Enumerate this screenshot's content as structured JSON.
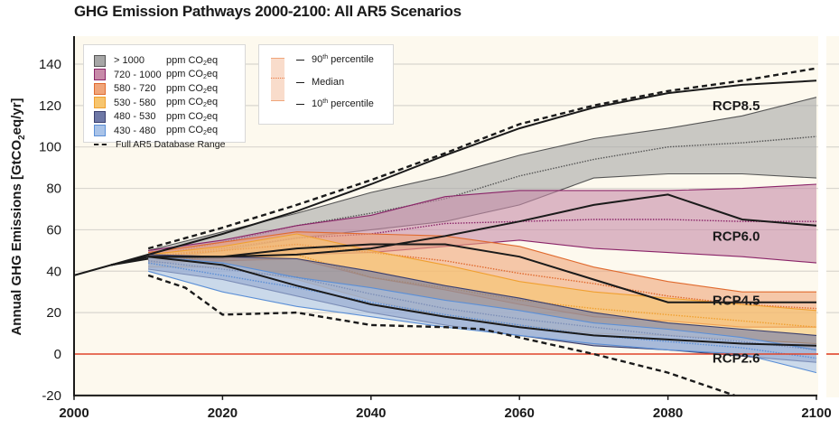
{
  "chart_data": {
    "type": "area",
    "title": "GHG Emission Pathways 2000-2100: All AR5 Scenarios",
    "xlabel": "",
    "ylabel": "Annual GHG Emissions [GtCO2eq/yr]",
    "ylabel_parts": {
      "pre": "Annual GHG Emissions [GtCO",
      "sub": "2",
      "post": "eq/yr]"
    },
    "xlim": [
      2000,
      2100
    ],
    "ylim": [
      -20,
      150
    ],
    "xticks": [
      "2000",
      "2020",
      "2040",
      "2060",
      "2080",
      "2100"
    ],
    "xtick_values": [
      2000,
      2020,
      2040,
      2060,
      2080,
      2100
    ],
    "yticks": [
      "-20",
      "0",
      "20",
      "40",
      "60",
      "80",
      "100",
      "120",
      "140"
    ],
    "ytick_values": [
      -20,
      0,
      20,
      40,
      60,
      80,
      100,
      120,
      140
    ],
    "grid": true,
    "zero_line_color": "#e0442a",
    "bands": [
      {
        "name": "> 1000",
        "unit": "ppm CO2eq",
        "fill": "#a6a6a6",
        "edge": "#555555",
        "x": [
          2010,
          2020,
          2030,
          2040,
          2050,
          2060,
          2070,
          2080,
          2090,
          2100
        ],
        "p10": [
          45,
          50,
          56,
          60,
          64,
          72,
          85,
          87,
          87,
          85
        ],
        "median": [
          47,
          54,
          62,
          68,
          75,
          86,
          94,
          100,
          102,
          105
        ],
        "p90": [
          50,
          59,
          68,
          78,
          86,
          96,
          104,
          109,
          115,
          124
        ]
      },
      {
        "name": "720 - 1000",
        "unit": "ppm CO2eq",
        "fill": "#c78aa8",
        "edge": "#8a2468",
        "x": [
          2010,
          2020,
          2030,
          2040,
          2050,
          2060,
          2070,
          2080,
          2090,
          2100
        ],
        "p10": [
          45,
          46,
          48,
          49,
          52,
          55,
          51,
          49,
          47,
          44
        ],
        "median": [
          47,
          51,
          56,
          58,
          63,
          64,
          65,
          65,
          64,
          64
        ],
        "p90": [
          50,
          55,
          62,
          67,
          76,
          79,
          79,
          79,
          80,
          82
        ]
      },
      {
        "name": "580 - 720",
        "unit": "ppm CO2eq",
        "fill": "#f0a57a",
        "edge": "#e06a2e",
        "x": [
          2010,
          2020,
          2030,
          2040,
          2050,
          2060,
          2070,
          2080,
          2090,
          2100
        ],
        "p10": [
          44,
          45,
          46,
          37,
          31,
          24,
          18,
          16,
          13,
          13
        ],
        "median": [
          47,
          50,
          53,
          49,
          45,
          39,
          34,
          28,
          24,
          22
        ],
        "p90": [
          49,
          54,
          59,
          58,
          57,
          52,
          42,
          35,
          30,
          30
        ]
      },
      {
        "name": "530 - 580",
        "unit": "ppm CO2eq",
        "fill": "#f7c56e",
        "edge": "#f0a030",
        "x": [
          2010,
          2020,
          2030,
          2040,
          2050,
          2060,
          2070,
          2080,
          2090,
          2100
        ],
        "p10": [
          42,
          42,
          36,
          26,
          18,
          14,
          10,
          9,
          7,
          5
        ],
        "median": [
          45,
          47,
          48,
          37,
          32,
          26,
          22,
          19,
          16,
          13
        ],
        "p90": [
          48,
          52,
          58,
          50,
          43,
          35,
          30,
          27,
          24,
          21
        ]
      },
      {
        "name": "480 - 530",
        "unit": "ppm CO2eq",
        "fill": "#6e78a6",
        "edge": "#3a3f6e",
        "x": [
          2010,
          2020,
          2030,
          2040,
          2050,
          2060,
          2070,
          2080,
          2090,
          2100
        ],
        "p10": [
          41,
          36,
          28,
          20,
          14,
          9,
          4,
          2,
          -1,
          -4
        ],
        "median": [
          45,
          41,
          37,
          29,
          22,
          17,
          13,
          9,
          6,
          2
        ],
        "p90": [
          48,
          47,
          46,
          40,
          33,
          27,
          20,
          15,
          12,
          9
        ]
      },
      {
        "name": "430 - 480",
        "unit": "ppm CO2eq",
        "fill": "#a9c3e8",
        "edge": "#5b8fd6",
        "x": [
          2010,
          2020,
          2030,
          2040,
          2050,
          2060,
          2070,
          2080,
          2090,
          2100
        ],
        "p10": [
          40,
          30,
          23,
          18,
          13,
          9,
          5,
          2,
          0,
          -9
        ],
        "median": [
          44,
          38,
          32,
          25,
          19,
          14,
          9,
          6,
          3,
          -2
        ],
        "p90": [
          47,
          44,
          37,
          32,
          26,
          21,
          15,
          12,
          8,
          2
        ]
      }
    ],
    "database_range": {
      "label": "Full AR5 Database Range",
      "upper": {
        "x": [
          2010,
          2020,
          2030,
          2040,
          2050,
          2060,
          2070,
          2080,
          2090,
          2100
        ],
        "y": [
          51,
          61,
          72,
          84,
          97,
          111,
          120,
          127,
          132,
          138
        ]
      },
      "lower": {
        "x": [
          2010,
          2015,
          2020,
          2030,
          2035,
          2040,
          2050,
          2055,
          2060,
          2070,
          2080,
          2089
        ],
        "y": [
          38,
          32,
          19,
          20,
          17,
          14,
          13,
          12,
          8,
          0,
          -9,
          -20
        ]
      }
    },
    "historical": {
      "x": [
        2000,
        2005,
        2010
      ],
      "y": [
        38,
        43,
        46
      ]
    },
    "rcp_pathways": [
      {
        "name": "RCP8.5",
        "x": [
          2010,
          2020,
          2030,
          2040,
          2050,
          2060,
          2070,
          2080,
          2090,
          2100
        ],
        "y": [
          48,
          58,
          69,
          82,
          96,
          109,
          119,
          126,
          130,
          132
        ]
      },
      {
        "name": "RCP6.0",
        "x": [
          2010,
          2020,
          2030,
          2040,
          2050,
          2060,
          2070,
          2080,
          2090,
          2100
        ],
        "y": [
          47,
          47,
          48,
          51,
          57,
          64,
          72,
          77,
          65,
          62
        ]
      },
      {
        "name": "RCP4.5",
        "x": [
          2010,
          2020,
          2030,
          2040,
          2050,
          2060,
          2070,
          2080,
          2090,
          2100
        ],
        "y": [
          47,
          47,
          51,
          53,
          53,
          47,
          36,
          25,
          25,
          25
        ]
      },
      {
        "name": "RCP2.6",
        "x": [
          2010,
          2020,
          2030,
          2040,
          2050,
          2060,
          2070,
          2080,
          2090,
          2100
        ],
        "y": [
          47,
          43,
          33,
          24,
          18,
          13,
          9,
          7,
          5,
          4
        ]
      }
    ],
    "rcp_labels": [
      {
        "name": "RCP8.5",
        "x": 2086,
        "y": 120
      },
      {
        "name": "RCP6.0",
        "x": 2086,
        "y": 57
      },
      {
        "name": "RCP4.5",
        "x": 2086,
        "y": 26
      },
      {
        "name": "RCP2.6",
        "x": 2086,
        "y": -2
      }
    ],
    "legend": {
      "placement": "top-left",
      "dashed_label": "Full AR5 Database Range",
      "percentile_legend": {
        "placement": "top-left-center",
        "p90": {
          "pre": "90",
          "sup": "th",
          "post": " percentile"
        },
        "median": "Median",
        "p10": {
          "pre": "10",
          "sup": "th",
          "post": " percentile"
        }
      }
    }
  }
}
